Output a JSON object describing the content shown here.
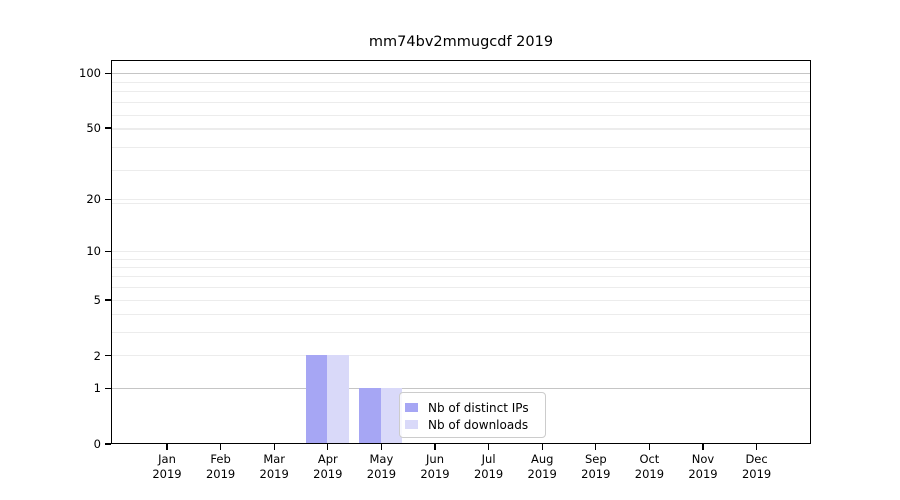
{
  "chart_data": {
    "type": "bar",
    "title": "mm74bv2mmugcdf 2019",
    "categories": [
      "Jan",
      "Feb",
      "Mar",
      "Apr",
      "May",
      "Jun",
      "Jul",
      "Aug",
      "Sep",
      "Oct",
      "Nov",
      "Dec"
    ],
    "year_label": "2019",
    "series": [
      {
        "name": "Nb of distinct IPs",
        "color": "#a6a6f4",
        "values": [
          0,
          0,
          0,
          2,
          1,
          0,
          0,
          0,
          0,
          0,
          0,
          0
        ]
      },
      {
        "name": "Nb of downloads",
        "color": "#d9d9f9",
        "values": [
          0,
          0,
          0,
          2,
          1,
          0,
          0,
          0,
          0,
          0,
          0,
          0
        ]
      }
    ],
    "yscale": "log1p",
    "yticks": [
      0,
      1,
      2,
      5,
      10,
      20,
      50,
      100
    ],
    "ylim": [
      0,
      113
    ],
    "xlabel": "",
    "ylabel": "",
    "grid": {
      "minor_values": [
        2,
        3,
        4,
        5,
        6,
        7,
        8,
        9,
        10,
        19,
        20,
        29,
        39,
        49,
        50,
        59,
        69,
        79,
        89
      ],
      "major_values": [
        1,
        100
      ],
      "minor_color": "#ececec",
      "major_color": "#c5c5c5"
    },
    "legend_position": "lower center"
  }
}
